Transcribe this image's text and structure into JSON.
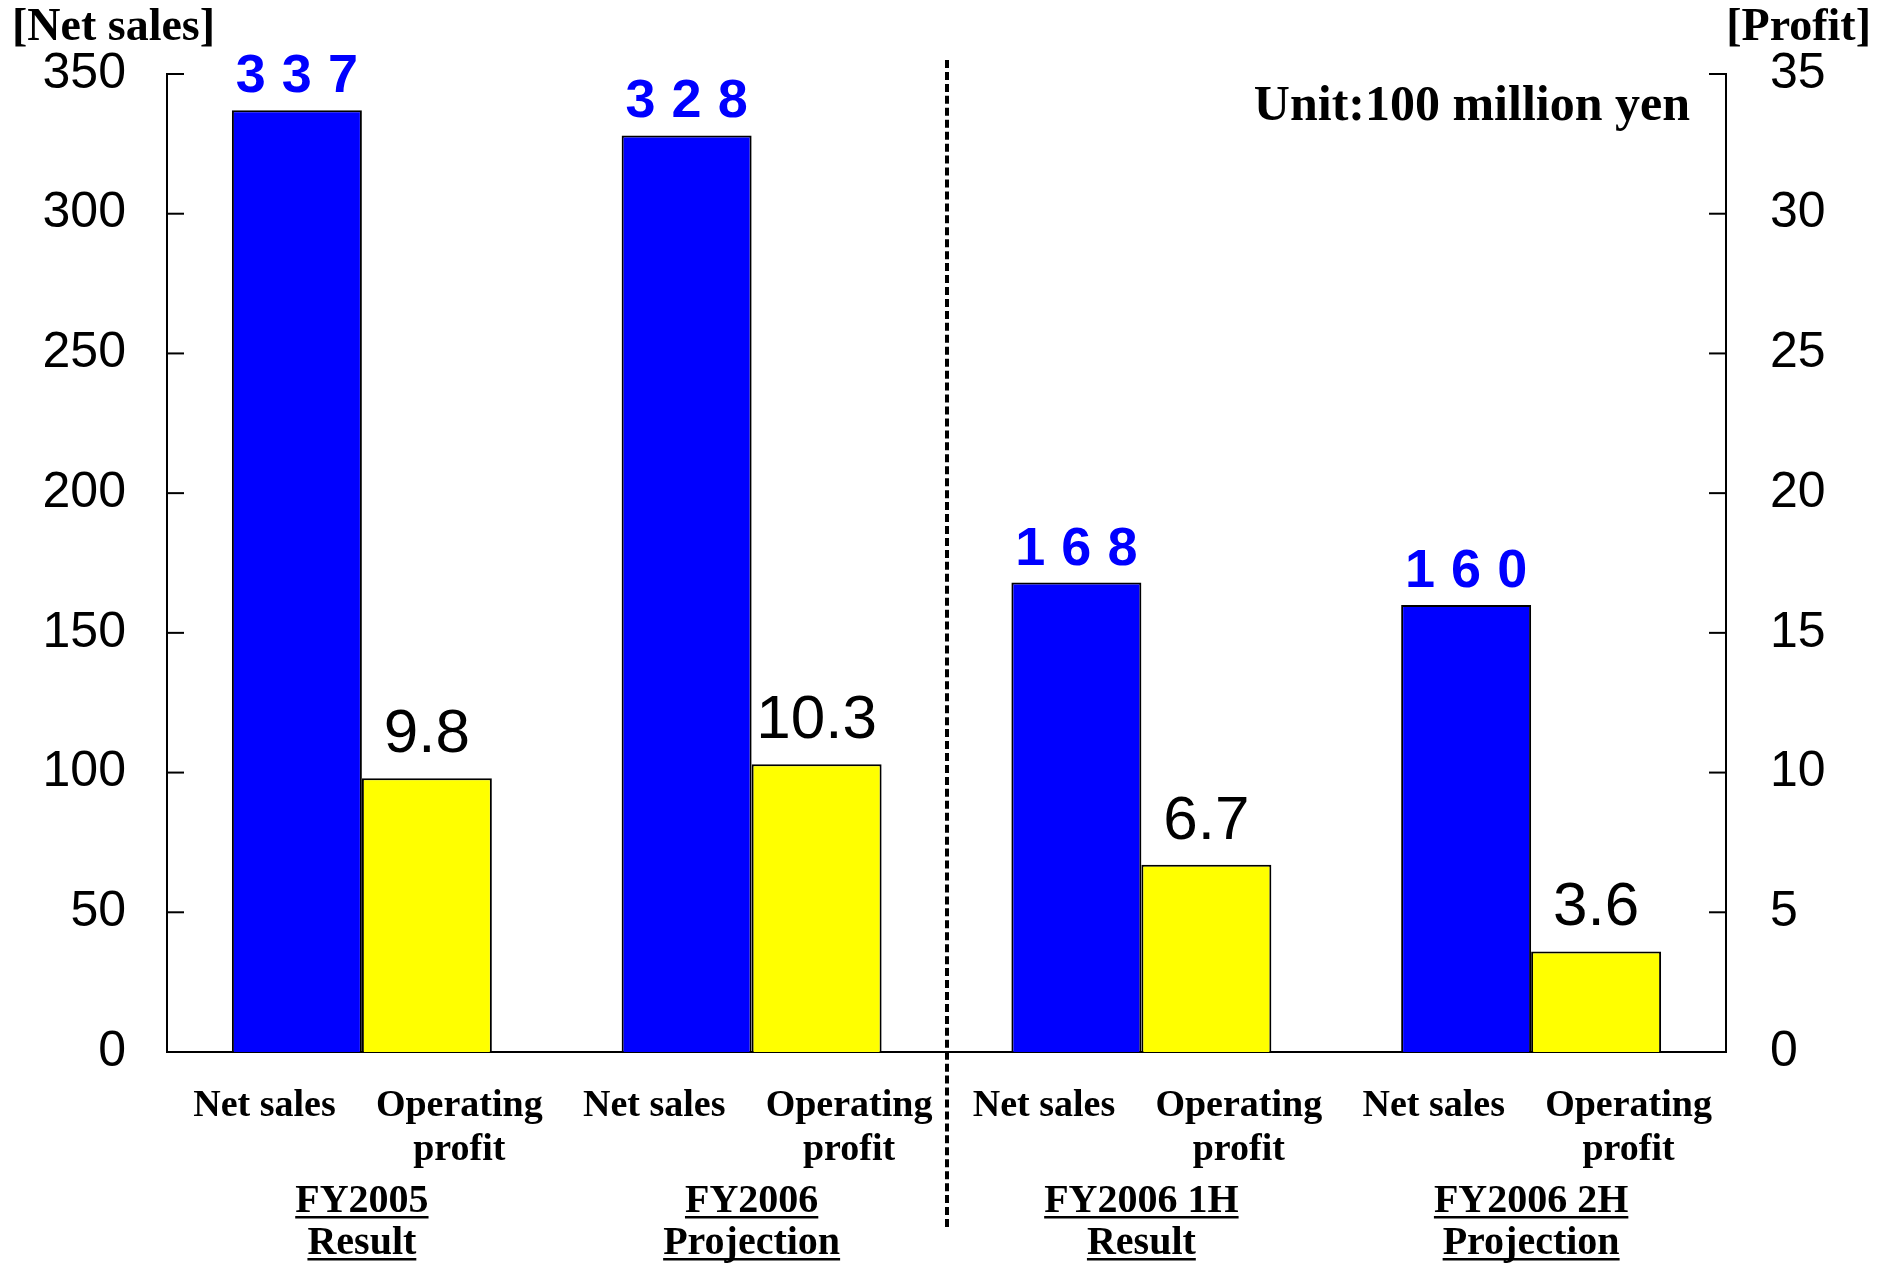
{
  "chart_data": {
    "type": "bar",
    "categories": [
      "FY2005\nResult",
      "FY2006\nProjection",
      "FY2006 1H\nResult",
      "FY2006 2H\nProjection"
    ],
    "series": [
      {
        "name": "Net sales",
        "color": "#0000ff",
        "values": [
          337,
          328,
          168,
          160
        ]
      },
      {
        "name": "Operating profit",
        "color": "#ffff00",
        "values": [
          9.8,
          10.3,
          6.7,
          3.6
        ],
        "axis": "y2"
      }
    ],
    "ylabel": "[Net sales]",
    "y2label": "[Profit]",
    "ylim": [
      0,
      350
    ],
    "yticks": [
      0,
      50,
      100,
      150,
      200,
      250,
      300,
      350
    ],
    "y2lim": [
      0,
      35
    ],
    "y2ticks": [
      0,
      5,
      10,
      15,
      20,
      25,
      30,
      35
    ],
    "data_labels": true,
    "annotations": [
      "Unit:100 million yen"
    ]
  }
}
